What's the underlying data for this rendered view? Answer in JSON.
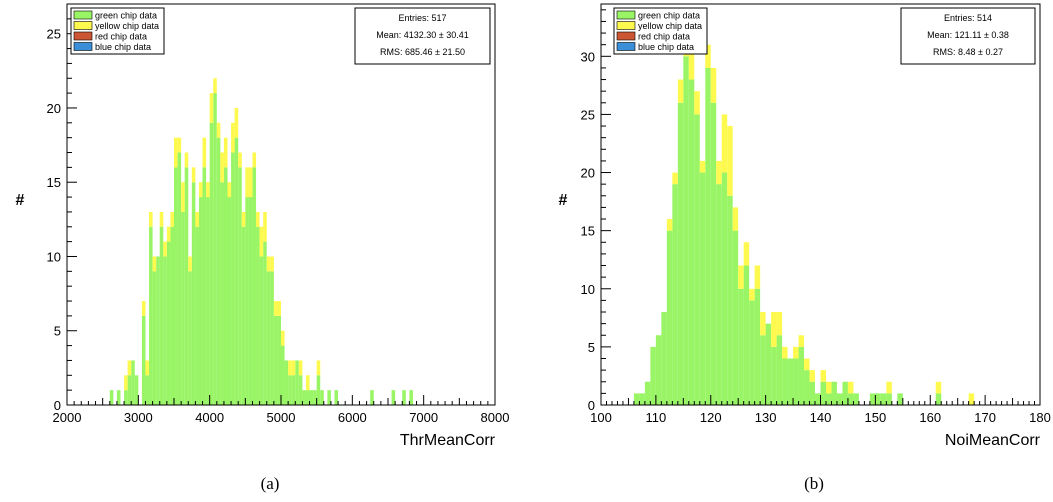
{
  "figure": {
    "captions": [
      "(a)",
      "(b)"
    ]
  },
  "chart_data": [
    {
      "type": "bar",
      "stacked": true,
      "xlabel": "ThrMeanCorr",
      "ylabel": "#",
      "xlim": [
        2000,
        8000
      ],
      "ylim": [
        0,
        27
      ],
      "x_ticks": [
        2000,
        3000,
        4000,
        5000,
        6000,
        7000,
        8000
      ],
      "y_ticks": [
        0,
        5,
        10,
        15,
        20,
        25
      ],
      "bin_width": 50,
      "legend": {
        "placement": "top-left",
        "entries": [
          {
            "label": "green chip data",
            "color": "#99f566"
          },
          {
            "label": "yellow chip data",
            "color": "#fef94e"
          },
          {
            "label": "red chip data",
            "color": "#cc5533"
          },
          {
            "label": "blue chip data",
            "color": "#3b8fd9"
          }
        ]
      },
      "stats": {
        "entries": "Entries: 517",
        "mean": "Mean: 4132.30 ± 30.41",
        "rms": "RMS:  685.46 ± 21.50"
      },
      "series": [
        {
          "name": "green chip data",
          "color": "#99f566",
          "x": [
            2600,
            2700,
            2800,
            2850,
            2900,
            2950,
            3050,
            3100,
            3150,
            3200,
            3250,
            3300,
            3350,
            3400,
            3450,
            3500,
            3550,
            3600,
            3650,
            3700,
            3750,
            3800,
            3850,
            3900,
            3950,
            4000,
            4050,
            4100,
            4150,
            4200,
            4250,
            4300,
            4350,
            4400,
            4450,
            4500,
            4550,
            4600,
            4650,
            4700,
            4750,
            4800,
            4850,
            4900,
            4950,
            5000,
            5050,
            5100,
            5150,
            5200,
            5250,
            5300,
            5350,
            5400,
            5450,
            5500,
            5550,
            5650,
            5750,
            6250,
            6550,
            6700,
            6800
          ],
          "values": [
            1,
            1,
            1,
            2,
            3,
            2,
            6,
            2,
            12,
            9,
            10,
            12,
            10,
            11,
            12,
            16,
            17,
            13,
            16,
            9,
            15,
            12,
            14,
            16,
            14,
            19,
            21,
            18,
            15,
            16,
            14,
            17,
            18,
            16,
            12,
            14,
            14,
            16,
            12,
            10,
            11,
            9,
            9,
            6,
            6,
            4,
            3,
            2,
            2,
            3,
            2,
            1,
            1,
            1,
            1,
            2,
            1,
            1,
            1,
            1,
            1,
            1,
            1
          ]
        },
        {
          "name": "yellow chip data",
          "color": "#fef94e",
          "x": [
            2800,
            2850,
            3050,
            3100,
            3150,
            3200,
            3300,
            3350,
            3400,
            3450,
            3500,
            3550,
            3600,
            3650,
            3700,
            3750,
            3800,
            3850,
            3900,
            3950,
            4000,
            4050,
            4100,
            4150,
            4200,
            4250,
            4300,
            4350,
            4400,
            4450,
            4500,
            4550,
            4600,
            4650,
            4700,
            4750,
            4800,
            4850,
            4900,
            4950,
            5000,
            5100,
            5150,
            5250,
            5350,
            5500
          ],
          "values": [
            1,
            1,
            1,
            1,
            1,
            1,
            1,
            1,
            1,
            1,
            2,
            1,
            2,
            1,
            1,
            1,
            1,
            1,
            2,
            1,
            2,
            1,
            1,
            2,
            2,
            1,
            2,
            2,
            1,
            1,
            2,
            2,
            1,
            1,
            2,
            2,
            1,
            1,
            1,
            1,
            1,
            1,
            1,
            1,
            1,
            1
          ]
        },
        {
          "name": "red chip data",
          "color": "#cc5533",
          "x": [],
          "values": []
        },
        {
          "name": "blue chip data",
          "color": "#3b8fd9",
          "x": [],
          "values": []
        }
      ]
    },
    {
      "type": "bar",
      "stacked": true,
      "xlabel": "NoiMeanCorr",
      "ylabel": "#",
      "xlim": [
        100,
        180
      ],
      "ylim": [
        0,
        34.5
      ],
      "x_ticks": [
        100,
        110,
        120,
        130,
        140,
        150,
        160,
        170,
        180
      ],
      "y_ticks": [
        0,
        5,
        10,
        15,
        20,
        25,
        30
      ],
      "bin_width": 1,
      "legend": {
        "placement": "top-left",
        "entries": [
          {
            "label": "green chip data",
            "color": "#99f566"
          },
          {
            "label": "yellow chip data",
            "color": "#fef94e"
          },
          {
            "label": "red chip data",
            "color": "#cc5533"
          },
          {
            "label": "blue chip data",
            "color": "#3b8fd9"
          }
        ]
      },
      "stats": {
        "entries": "Entries: 514",
        "mean": "Mean: 121.11 ± 0.38",
        "rms": "RMS:  8.48 ± 0.27"
      },
      "series": [
        {
          "name": "green chip data",
          "color": "#99f566",
          "x": [
            106,
            107,
            108,
            109,
            110,
            111,
            112,
            113,
            114,
            115,
            116,
            117,
            118,
            119,
            120,
            121,
            122,
            123,
            124,
            125,
            126,
            127,
            128,
            129,
            130,
            131,
            132,
            133,
            134,
            135,
            136,
            137,
            138,
            139,
            140,
            141,
            142,
            143,
            144,
            145,
            146,
            149,
            150,
            151,
            152,
            154,
            161
          ],
          "values": [
            1,
            1,
            2,
            5,
            6,
            8,
            15,
            19,
            26,
            30,
            28,
            25,
            20,
            29,
            26,
            19,
            20,
            18,
            15,
            10,
            12,
            9,
            10,
            6,
            7,
            5,
            6,
            4,
            4,
            4,
            5,
            3,
            2,
            1,
            2,
            1,
            2,
            1,
            2,
            1,
            1,
            1,
            1,
            1,
            1,
            1,
            1
          ]
        },
        {
          "name": "yellow chip data",
          "color": "#fef94e",
          "x": [
            112,
            113,
            114,
            115,
            116,
            117,
            118,
            119,
            120,
            121,
            122,
            123,
            124,
            125,
            126,
            127,
            128,
            129,
            131,
            132,
            133,
            135,
            136,
            137,
            138,
            140,
            141,
            145,
            152,
            161,
            167
          ],
          "values": [
            1,
            1,
            2,
            2,
            3,
            2,
            1,
            2,
            3,
            2,
            5,
            6,
            2,
            2,
            2,
            1,
            2,
            2,
            3,
            2,
            1,
            1,
            1,
            1,
            1,
            1,
            1,
            1,
            1,
            1,
            1
          ]
        },
        {
          "name": "red chip data",
          "color": "#cc5533",
          "x": [],
          "values": []
        },
        {
          "name": "blue chip data",
          "color": "#3b8fd9",
          "x": [],
          "values": []
        }
      ]
    }
  ]
}
